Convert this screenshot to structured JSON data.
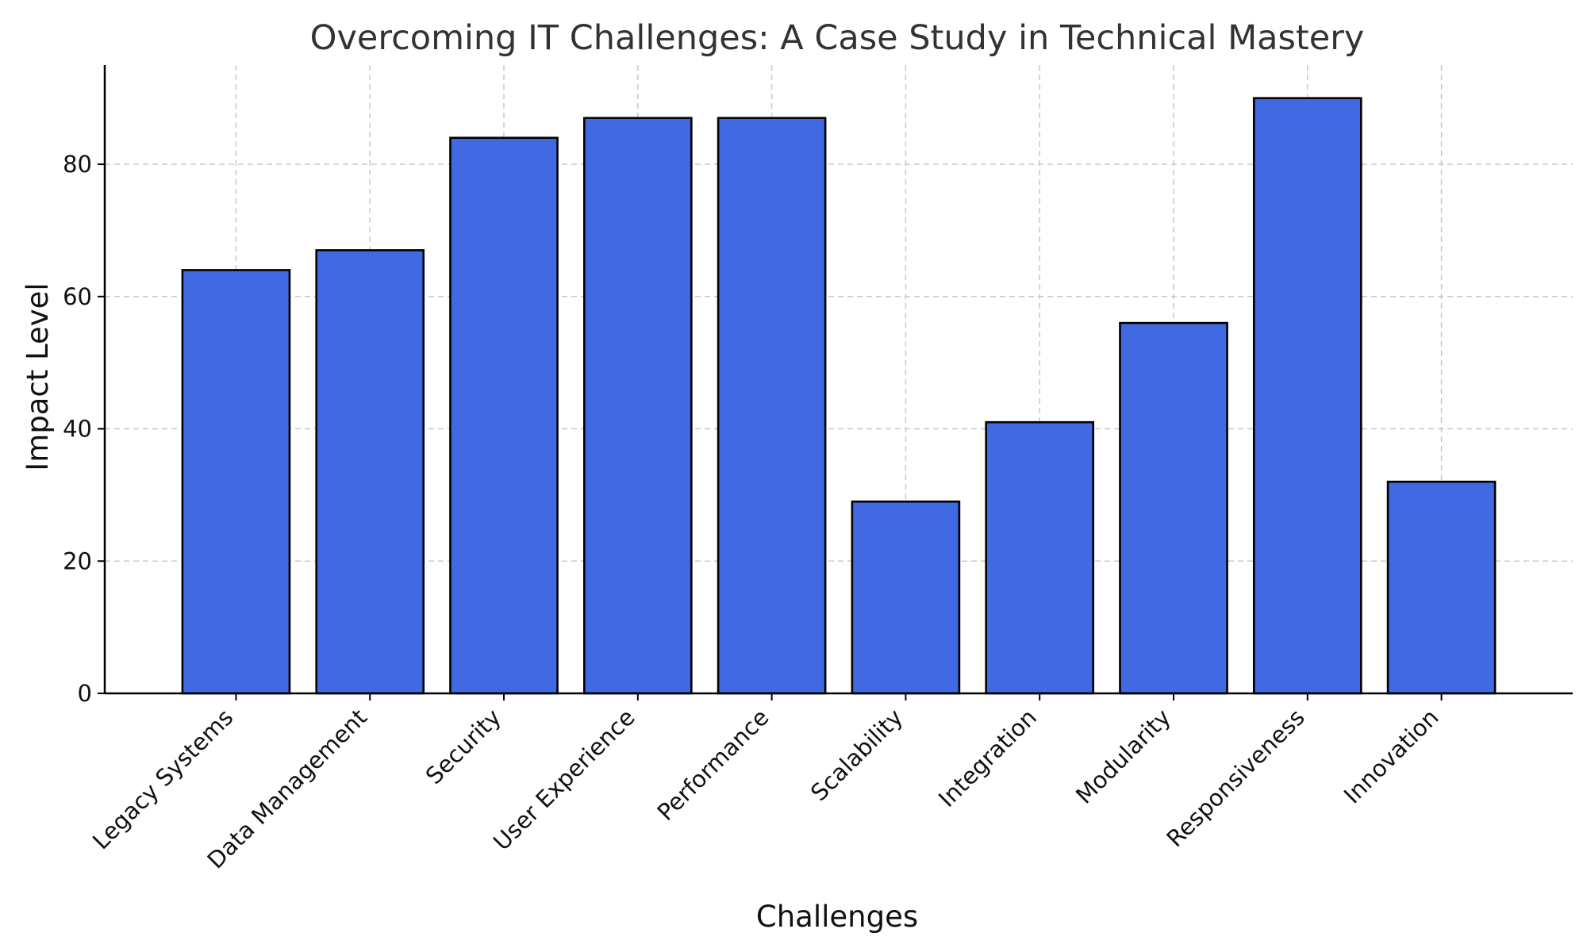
{
  "chart_data": {
    "type": "bar",
    "title": "Overcoming IT Challenges: A Case Study in Technical Mastery",
    "xlabel": "Challenges",
    "ylabel": "Impact Level",
    "categories": [
      "Legacy Systems",
      "Data Management",
      "Security",
      "User Experience",
      "Performance",
      "Scalability",
      "Integration",
      "Modularity",
      "Responsiveness",
      "Innovation"
    ],
    "values": [
      64,
      67,
      84,
      87,
      87,
      29,
      41,
      56,
      90,
      32
    ],
    "ylim": [
      0,
      95
    ],
    "yticks": [
      "0",
      "20",
      "40",
      "60",
      "80"
    ],
    "grid": true,
    "bar_color": "#4169E1",
    "edge_color": "#000000"
  }
}
